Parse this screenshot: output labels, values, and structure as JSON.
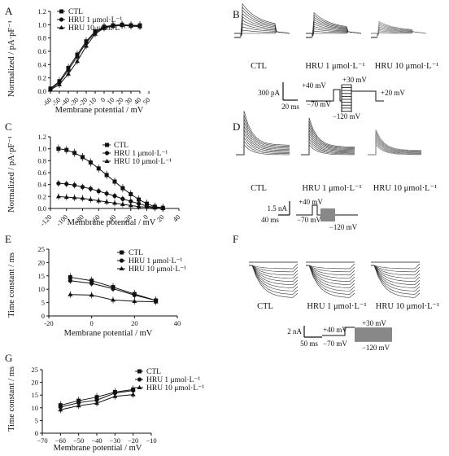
{
  "panels": [
    {
      "id": "A",
      "label": "A"
    },
    {
      "id": "B",
      "label": "B"
    },
    {
      "id": "C",
      "label": "C"
    },
    {
      "id": "D",
      "label": "D"
    },
    {
      "id": "E",
      "label": "E"
    },
    {
      "id": "F",
      "label": "F"
    },
    {
      "id": "G",
      "label": "G"
    }
  ],
  "chart_data": [
    {
      "panel": "A",
      "type": "line",
      "title": "",
      "xlabel": "Membrane potential / mV",
      "ylabel": "Normalized / pA·pF⁻¹",
      "xlim": [
        -60,
        40
      ],
      "ylim": [
        0,
        1.2
      ],
      "xticks": [
        -60,
        -50,
        -40,
        -30,
        -20,
        -10,
        0,
        10,
        20,
        30,
        40,
        50
      ],
      "xtick_labels": [
        "-60",
        "-50",
        "-40",
        "-30",
        "-20",
        "-10",
        "0",
        "10",
        "20",
        "30",
        "40",
        "50"
      ],
      "yticks": [
        0,
        0.2,
        0.4,
        0.6,
        0.8,
        1.0,
        1.2
      ],
      "ytick_labels": [
        "0.0",
        "0.2",
        "0.4",
        "0.6",
        "0.8",
        "1.0",
        "1.2"
      ],
      "legend": "top-left",
      "x": [
        -60,
        -50,
        -40,
        -30,
        -20,
        -10,
        0,
        10,
        20,
        30,
        40
      ],
      "series": [
        {
          "name": "CTL",
          "marker": "square",
          "values": [
            0.04,
            0.15,
            0.35,
            0.55,
            0.75,
            0.9,
            0.97,
            0.99,
            1.0,
            0.99,
            0.99
          ]
        },
        {
          "name": "HRU 1 μmol·L⁻¹",
          "marker": "circle",
          "values": [
            0.03,
            0.13,
            0.32,
            0.52,
            0.73,
            0.88,
            0.96,
            0.99,
            1.0,
            0.99,
            0.98
          ]
        },
        {
          "name": "HRU 10 μmol·L⁻¹",
          "marker": "triangle",
          "values": [
            0.02,
            0.1,
            0.26,
            0.45,
            0.68,
            0.86,
            0.95,
            0.98,
            0.99,
            0.98,
            0.97
          ]
        }
      ]
    },
    {
      "panel": "C",
      "type": "line",
      "title": "",
      "xlabel": "Membrane potential / mV",
      "ylabel": "Normalized / pA·pF⁻¹",
      "xlim": [
        -120,
        40
      ],
      "ylim": [
        0,
        1.2
      ],
      "xticks": [
        -120,
        -100,
        -80,
        -60,
        -40,
        -20,
        0,
        20,
        40
      ],
      "xtick_labels": [
        "-120",
        "-100",
        "-80",
        "-60",
        "-40",
        "-20",
        "0",
        "20",
        "40"
      ],
      "yticks": [
        0,
        0.2,
        0.4,
        0.6,
        0.8,
        1.0,
        1.2
      ],
      "ytick_labels": [
        "0.0",
        "0.2",
        "0.4",
        "0.6",
        "0.8",
        "1.0",
        "1.2"
      ],
      "legend": "top-right",
      "x": [
        -110,
        -100,
        -90,
        -80,
        -70,
        -60,
        -50,
        -40,
        -30,
        -20,
        -10,
        0,
        10,
        20
      ],
      "series": [
        {
          "name": "CTL",
          "marker": "square",
          "values": [
            1.0,
            0.98,
            0.93,
            0.86,
            0.77,
            0.67,
            0.56,
            0.45,
            0.34,
            0.24,
            0.15,
            0.08,
            0.03,
            0.01
          ]
        },
        {
          "name": "HRU 1 μmol·L⁻¹",
          "marker": "circle",
          "values": [
            0.42,
            0.41,
            0.39,
            0.36,
            0.33,
            0.29,
            0.25,
            0.21,
            0.16,
            0.12,
            0.08,
            0.04,
            0.02,
            0.01
          ]
        },
        {
          "name": "HRU 10 μmol·L⁻¹",
          "marker": "triangle",
          "values": [
            0.2,
            0.19,
            0.18,
            0.17,
            0.15,
            0.13,
            0.11,
            0.09,
            0.07,
            0.05,
            0.03,
            0.02,
            0.01,
            0.0
          ]
        }
      ]
    },
    {
      "panel": "E",
      "type": "line",
      "title": "",
      "xlabel": "Membrane potential / mV",
      "ylabel": "Time constant / ms",
      "xlim": [
        -20,
        40
      ],
      "ylim": [
        0,
        25
      ],
      "xticks": [
        -20,
        0,
        20,
        40
      ],
      "xtick_labels": [
        "-20",
        "0",
        "20",
        "40"
      ],
      "yticks": [
        0,
        5,
        10,
        15,
        20,
        25
      ],
      "ytick_labels": [
        "0",
        "5",
        "10",
        "15",
        "20",
        "25"
      ],
      "legend": "top-right",
      "x": [
        -10,
        0,
        10,
        20,
        30
      ],
      "series": [
        {
          "name": "CTL",
          "marker": "square",
          "values": [
            14.5,
            13.2,
            10.8,
            8.2,
            5.8
          ]
        },
        {
          "name": "HRU 1 μmol·L⁻¹",
          "marker": "circle",
          "values": [
            13.2,
            12.2,
            10.2,
            7.8,
            5.8
          ]
        },
        {
          "name": "HRU 10 μmol·L⁻¹",
          "marker": "triangle",
          "values": [
            8.0,
            7.8,
            6.0,
            5.5,
            5.3
          ]
        }
      ]
    },
    {
      "panel": "G",
      "type": "line",
      "title": "",
      "xlabel": "Membrane potential / mV",
      "ylabel": "Time constant / ms",
      "xlim": [
        -70,
        -10
      ],
      "ylim": [
        0,
        25
      ],
      "xticks": [
        -70,
        -60,
        -50,
        -40,
        -30,
        -20,
        -10
      ],
      "xtick_labels": [
        "−70",
        "−60",
        "−50",
        "−40",
        "−30",
        "−20",
        "−10"
      ],
      "yticks": [
        0,
        5,
        10,
        15,
        20,
        25
      ],
      "ytick_labels": [
        "0",
        "5",
        "10",
        "15",
        "20",
        "25"
      ],
      "legend": "top-right",
      "x": [
        -60,
        -50,
        -40,
        -30,
        -20
      ],
      "series": [
        {
          "name": "CTL",
          "marker": "square",
          "values": [
            11.0,
            12.8,
            14.2,
            16.2,
            17.2
          ]
        },
        {
          "name": "HRU 1 μmol·L⁻¹",
          "marker": "circle",
          "values": [
            10.3,
            12.0,
            13.0,
            15.8,
            16.8
          ]
        },
        {
          "name": "HRU 10 μmol·L⁻¹",
          "marker": "triangle",
          "values": [
            9.2,
            10.8,
            11.8,
            14.5,
            15.2
          ]
        }
      ]
    }
  ],
  "traces": {
    "B": {
      "labels": [
        "CTL",
        "HRU 1 μmol·L⁻¹",
        "HRU 10 μmol·L⁻¹"
      ],
      "scale": {
        "y": "300 pA",
        "x": "20 ms"
      },
      "protocol": {
        "hold1": "+40 mV",
        "hold2": "−70 mV",
        "top": "+30 mV",
        "bottom": "−120 mV",
        "post": "+20 mV"
      }
    },
    "D": {
      "labels": [
        "CTL",
        "HRU 1 μmol·L⁻¹",
        "HRU 10 μmol·L⁻¹"
      ],
      "scale": {
        "y": "1.5 nA",
        "x": "40 ms"
      },
      "protocol": {
        "hold1": "+40 mV",
        "hold2": "−70 mV",
        "bottom": "−120 mV"
      }
    },
    "F": {
      "labels": [
        "CTL",
        "HRU 1 μmol·L⁻¹",
        "HRU 10 μmol·L⁻¹"
      ],
      "scale": {
        "y": "2 nA",
        "x": "50 ms"
      },
      "protocol": {
        "hold1": "+40 mV",
        "hold2": "−70 mV",
        "top": "+30 mV",
        "bottom": "−120 mV"
      }
    }
  }
}
